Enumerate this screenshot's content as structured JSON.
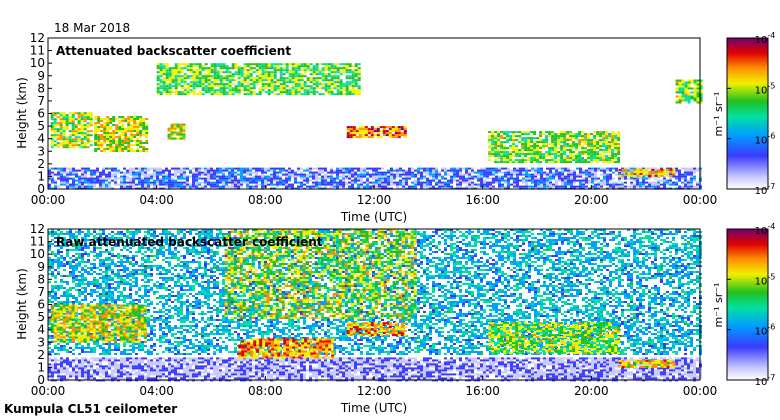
{
  "date_label": "18 Mar 2018",
  "footer_label": "Kumpula CL51 ceilometer",
  "chart_data": [
    {
      "type": "heatmap",
      "title": "Attenuated backscatter coefficient",
      "xlabel": "Time (UTC)",
      "ylabel": "Height (km)",
      "xlim": [
        0,
        24
      ],
      "ylim": [
        0,
        12
      ],
      "x_ticks": [
        "00:00",
        "04:00",
        "08:00",
        "12:00",
        "16:00",
        "20:00",
        "00:00"
      ],
      "y_ticks": [
        "0",
        "1",
        "2",
        "3",
        "4",
        "5",
        "6",
        "7",
        "8",
        "9",
        "10",
        "11",
        "12"
      ],
      "colorbar": {
        "label": "m⁻¹ sr⁻¹",
        "scale": "log",
        "ticks": [
          "10-7",
          "10-6",
          "10-5",
          "10-4"
        ],
        "min_exp": -7,
        "max_exp": -4
      },
      "features": [
        {
          "name": "low aerosol layer",
          "t0": 0,
          "t1": 24,
          "h0": 0,
          "h1": 1.7,
          "level": -6.6
        },
        {
          "name": "cloud morning 1",
          "t0": 0.1,
          "t1": 1.6,
          "h0": 3.3,
          "h1": 6.1,
          "level": -5.2
        },
        {
          "name": "cloud morning 2",
          "t0": 1.7,
          "t1": 3.6,
          "h0": 3.0,
          "h1": 5.8,
          "level": -5.1
        },
        {
          "name": "cloud 04:30",
          "t0": 4.4,
          "t1": 5.0,
          "h0": 4.0,
          "h1": 5.2,
          "level": -5.2
        },
        {
          "name": "cloud 12:00",
          "t0": 11.0,
          "t1": 13.2,
          "h0": 4.2,
          "h1": 5.0,
          "level": -4.7
        },
        {
          "name": "cloud 16-21",
          "t0": 16.2,
          "t1": 21.0,
          "h0": 2.2,
          "h1": 4.6,
          "level": -5.3
        },
        {
          "name": "low cloud 21-23",
          "t0": 21.0,
          "t1": 23.0,
          "h0": 1.0,
          "h1": 1.6,
          "level": -4.9
        },
        {
          "name": "high patches",
          "t0": 4.0,
          "t1": 11.5,
          "h0": 7.5,
          "h1": 10.0,
          "level": -5.4
        },
        {
          "name": "late cloud",
          "t0": 23.1,
          "t1": 24.0,
          "h0": 6.8,
          "h1": 8.7,
          "level": -5.3
        }
      ]
    },
    {
      "type": "heatmap",
      "title": "Raw attenuated backscatter coefficient",
      "xlabel": "Time (UTC)",
      "ylabel": "Height (km)",
      "xlim": [
        0,
        24
      ],
      "ylim": [
        0,
        12
      ],
      "x_ticks": [
        "00:00",
        "04:00",
        "08:00",
        "12:00",
        "16:00",
        "20:00",
        "00:00"
      ],
      "y_ticks": [
        "0",
        "1",
        "2",
        "3",
        "4",
        "5",
        "6",
        "7",
        "8",
        "9",
        "10",
        "11",
        "12"
      ],
      "colorbar": {
        "label": "m⁻¹ sr⁻¹",
        "scale": "log",
        "ticks": [
          "10-7",
          "10-6",
          "10-5",
          "10-4"
        ],
        "min_exp": -7,
        "max_exp": -4
      },
      "features": [
        {
          "name": "noise field",
          "t0": 0,
          "t1": 24,
          "h0": 2,
          "h1": 12,
          "level": -6.0
        },
        {
          "name": "daytime noise",
          "t0": 6.5,
          "t1": 13.5,
          "h0": 5,
          "h1": 12,
          "level": -5.2
        },
        {
          "name": "low aerosol layer",
          "t0": 0,
          "t1": 24,
          "h0": 0,
          "h1": 1.8,
          "level": -6.8
        },
        {
          "name": "cloud morning",
          "t0": 0.1,
          "t1": 3.6,
          "h0": 3.0,
          "h1": 6.0,
          "level": -5.1
        },
        {
          "name": "cloud 07-10",
          "t0": 7.0,
          "t1": 10.5,
          "h0": 1.8,
          "h1": 3.3,
          "level": -4.8
        },
        {
          "name": "cloud 12:00",
          "t0": 11.0,
          "t1": 13.2,
          "h0": 3.6,
          "h1": 4.6,
          "level": -4.8
        },
        {
          "name": "cloud 16-21",
          "t0": 16.2,
          "t1": 21.0,
          "h0": 2.2,
          "h1": 4.6,
          "level": -5.3
        },
        {
          "name": "low cloud 21-23",
          "t0": 21.0,
          "t1": 23.0,
          "h0": 1.0,
          "h1": 1.6,
          "level": -4.9
        }
      ]
    }
  ]
}
